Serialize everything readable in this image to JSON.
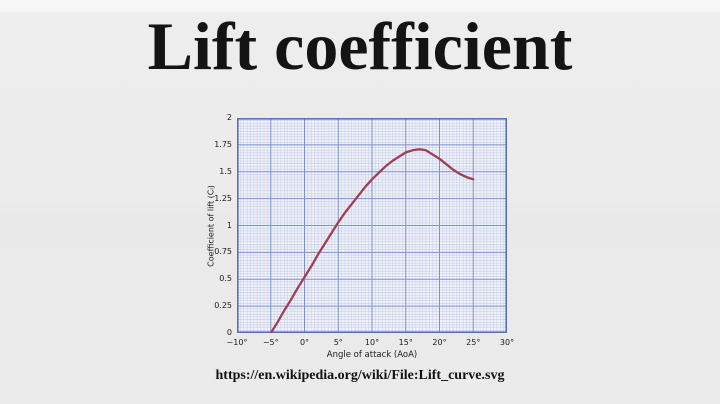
{
  "title": "Lift coefficient",
  "source_url": "https://en.wikipedia.org/wiki/File:Lift_curve.svg",
  "colors": {
    "background": "#ebebeb",
    "title_text": "#141414",
    "curve": "#a03e55",
    "grid_minor": "#c4cce8",
    "grid_major": "#7e8fcc",
    "plot_border": "#5a6fb5",
    "plot_background": "#f1f2f8",
    "axis_text": "#1a1a1a"
  },
  "chart_data": {
    "type": "line",
    "title": "",
    "xlabel": "Angle of attack (AoA)",
    "ylabel": "Coefficient of lift (Cₗ)",
    "xlim": [
      -10,
      30
    ],
    "ylim": [
      0,
      2
    ],
    "x_major_step": 5,
    "y_major_step": 0.25,
    "minor_per_major": 10,
    "grid": "graph-paper",
    "legend": "none",
    "x_tick_labels": [
      "−10°",
      "−5°",
      "0°",
      "5°",
      "10°",
      "15°",
      "20°",
      "25°",
      "30°"
    ],
    "y_tick_labels": [
      "0",
      "0.25",
      "0.5",
      "0.75",
      "1",
      "1.25",
      "1.5",
      "1.75",
      "2"
    ],
    "series": [
      {
        "name": "Lift coefficient curve",
        "points": [
          [
            -5,
            0
          ],
          [
            -4,
            0.1
          ],
          [
            -3,
            0.21
          ],
          [
            -2,
            0.31
          ],
          [
            -1,
            0.42
          ],
          [
            0,
            0.52
          ],
          [
            1,
            0.62
          ],
          [
            2,
            0.73
          ],
          [
            3,
            0.83
          ],
          [
            4,
            0.93
          ],
          [
            5,
            1.03
          ],
          [
            6,
            1.12
          ],
          [
            7,
            1.2
          ],
          [
            8,
            1.28
          ],
          [
            9,
            1.36
          ],
          [
            10,
            1.43
          ],
          [
            11,
            1.49
          ],
          [
            12,
            1.55
          ],
          [
            13,
            1.6
          ],
          [
            14,
            1.64
          ],
          [
            15,
            1.68
          ],
          [
            16,
            1.7
          ],
          [
            17,
            1.71
          ],
          [
            18,
            1.7
          ],
          [
            19,
            1.66
          ],
          [
            20,
            1.62
          ],
          [
            21,
            1.57
          ],
          [
            22,
            1.52
          ],
          [
            23,
            1.48
          ],
          [
            24,
            1.45
          ],
          [
            25,
            1.43
          ]
        ]
      }
    ]
  }
}
